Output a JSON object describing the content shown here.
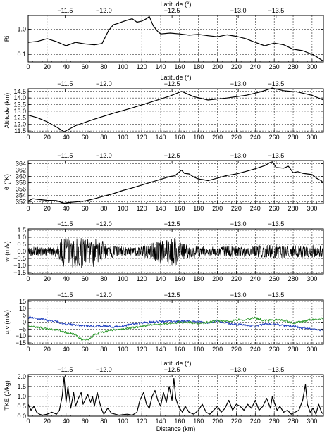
{
  "chart_data": [
    {
      "type": "line",
      "top_axis_label": "Latitude (°)",
      "top_ticks": [
        "−11.5",
        "−12.0",
        "−12.5",
        "−13.0",
        "−13.5"
      ],
      "top_tick_positions": [
        39,
        80,
        152,
        222,
        262
      ],
      "ylabel": "Ri",
      "xlabel": "",
      "log_y": true,
      "xlim": [
        0,
        312
      ],
      "ylim": [
        0.05,
        3.5
      ],
      "xticks": [
        0,
        20,
        40,
        60,
        80,
        100,
        120,
        140,
        160,
        180,
        200,
        220,
        240,
        260,
        280,
        300
      ],
      "yticks": [
        0.1,
        1.0
      ],
      "ytick_labels": [
        "0.1",
        "1.0"
      ],
      "grid": true,
      "series": [
        {
          "color": "#000000",
          "x": [
            0,
            10,
            20,
            30,
            40,
            50,
            60,
            70,
            78,
            85,
            90,
            95,
            100,
            105,
            110,
            115,
            120,
            125,
            128,
            132,
            137,
            140,
            150,
            160,
            170,
            180,
            190,
            200,
            210,
            220,
            230,
            240,
            250,
            260,
            270,
            280,
            290,
            300,
            305,
            310,
            312
          ],
          "y": [
            0.3,
            0.33,
            0.42,
            0.32,
            0.22,
            0.3,
            0.26,
            0.24,
            0.27,
            0.9,
            1.5,
            1.7,
            2.0,
            2.3,
            2.6,
            1.9,
            2.1,
            2.6,
            3.2,
            1.4,
            0.8,
            0.65,
            0.7,
            0.65,
            0.58,
            0.62,
            0.55,
            0.5,
            0.6,
            0.52,
            0.42,
            0.3,
            0.22,
            0.28,
            0.24,
            0.16,
            0.14,
            0.1,
            0.08,
            0.06,
            0.055
          ]
        }
      ]
    },
    {
      "type": "line",
      "top_axis_label": "Latitude (°)",
      "top_ticks": [
        "−11.5",
        "−12.0",
        "−12.5",
        "−13.0",
        "−13.5"
      ],
      "top_tick_positions": [
        39,
        80,
        152,
        222,
        262
      ],
      "ylabel": "Altitude (km)",
      "xlabel": "",
      "xlim": [
        0,
        312
      ],
      "ylim": [
        11.4,
        14.7
      ],
      "xticks": [
        0,
        20,
        40,
        60,
        80,
        100,
        120,
        140,
        160,
        180,
        200,
        220,
        240,
        260,
        280,
        300
      ],
      "yticks": [
        11.5,
        12.0,
        12.5,
        13.0,
        13.5,
        14.0,
        14.5
      ],
      "ytick_labels": [
        "11.5",
        "12.0",
        "12.5",
        "13.0",
        "13.5",
        "14.0",
        "14.5"
      ],
      "grid": true,
      "series": [
        {
          "color": "#000000",
          "x": [
            0,
            10,
            20,
            30,
            38,
            50,
            70,
            90,
            110,
            130,
            150,
            162,
            175,
            190,
            210,
            230,
            245,
            258,
            270,
            285,
            300,
            312
          ],
          "y": [
            12.7,
            12.5,
            12.2,
            11.8,
            11.45,
            11.9,
            12.4,
            12.85,
            13.25,
            13.7,
            14.15,
            14.5,
            14.1,
            13.85,
            14.0,
            14.2,
            14.45,
            14.75,
            14.55,
            14.45,
            14.2,
            13.85
          ]
        }
      ]
    },
    {
      "type": "line",
      "top_axis_label": "",
      "top_ticks": [
        "−11.5",
        "−12.0",
        "−12.5",
        "−13.0",
        "−13.5"
      ],
      "top_tick_positions": [
        39,
        80,
        152,
        222,
        262
      ],
      "ylabel": "θ (°K)",
      "xlabel": "",
      "xlim": [
        0,
        312
      ],
      "ylim": [
        351.5,
        365
      ],
      "xticks": [
        0,
        20,
        40,
        60,
        80,
        100,
        120,
        140,
        160,
        180,
        200,
        220,
        240,
        260,
        280,
        300
      ],
      "yticks": [
        352,
        354,
        356,
        358,
        360,
        362,
        364
      ],
      "ytick_labels": [
        "352",
        "354",
        "356",
        "358",
        "360",
        "362",
        "364"
      ],
      "grid": true,
      "series": [
        {
          "color": "#000000",
          "x": [
            0,
            5,
            10,
            20,
            30,
            38,
            42,
            50,
            60,
            70,
            80,
            90,
            100,
            110,
            120,
            130,
            140,
            150,
            155,
            160,
            162,
            165,
            170,
            175,
            180,
            185,
            190,
            200,
            210,
            220,
            230,
            240,
            250,
            255,
            258,
            262,
            270,
            275,
            280,
            285,
            290,
            300,
            305,
            310,
            312
          ],
          "y": [
            352.3,
            353.0,
            352.8,
            352.5,
            352.4,
            351.6,
            351.8,
            352.0,
            352.3,
            353.0,
            353.8,
            354.6,
            355.6,
            356.4,
            357.3,
            358.2,
            359.1,
            360.0,
            360.2,
            361.5,
            362.0,
            361.0,
            360.8,
            359.8,
            359.2,
            359.0,
            358.7,
            359.5,
            360.3,
            360.8,
            361.6,
            362.4,
            363.4,
            364.3,
            364.6,
            362.8,
            362.6,
            363.2,
            361.2,
            361.5,
            361.0,
            360.6,
            359.4,
            358.6,
            357.8
          ]
        }
      ]
    },
    {
      "type": "line",
      "top_axis_label": "",
      "top_ticks": [
        "−11.5",
        "−12.0",
        "−12.5",
        "−13.0",
        "−13.5"
      ],
      "top_tick_positions": [
        39,
        80,
        152,
        222,
        262
      ],
      "ylabel": "w (m/s)",
      "xlabel": "",
      "xlim": [
        0,
        312
      ],
      "ylim": [
        -1.6,
        1.6
      ],
      "xticks": [
        0,
        20,
        40,
        60,
        80,
        100,
        120,
        140,
        160,
        180,
        200,
        220,
        240,
        260,
        280,
        300
      ],
      "yticks": [
        -1.5,
        -1.0,
        -0.5,
        0.0,
        0.5,
        1.0,
        1.5
      ],
      "ytick_labels": [
        "−1.5",
        "−1.0",
        "−0.5",
        "0.0",
        "0.5",
        "1.0",
        "1.5"
      ],
      "grid": true,
      "series": [
        {
          "color": "#000000",
          "x": [
            0,
            10,
            20,
            30,
            35,
            40,
            45,
            50,
            55,
            60,
            65,
            70,
            75,
            80,
            85,
            90,
            100,
            110,
            120,
            130,
            140,
            150,
            155,
            160,
            170,
            180,
            190,
            200,
            210,
            220,
            230,
            240,
            250,
            260,
            270,
            280,
            290,
            300,
            310,
            312
          ],
          "y_envelope_upper": [
            0.3,
            0.35,
            0.3,
            0.4,
            0.9,
            1.3,
            1.2,
            1.0,
            1.1,
            0.9,
            1.1,
            0.9,
            0.9,
            0.7,
            0.5,
            0.4,
            0.35,
            0.3,
            0.35,
            0.6,
            0.8,
            0.9,
            1.0,
            0.7,
            0.5,
            0.4,
            0.35,
            0.35,
            0.4,
            0.4,
            0.35,
            0.4,
            0.45,
            0.5,
            0.4,
            0.4,
            0.45,
            0.45,
            0.4,
            0.4
          ],
          "y_envelope_lower": [
            -0.3,
            -0.3,
            -0.35,
            -0.4,
            -0.9,
            -1.3,
            -1.2,
            -1.3,
            -1.2,
            -1.2,
            -1.1,
            -1.3,
            -0.9,
            -0.7,
            -0.6,
            -0.4,
            -0.35,
            -0.3,
            -0.35,
            -0.6,
            -0.8,
            -1.0,
            -1.1,
            -0.8,
            -0.5,
            -0.4,
            -0.35,
            -0.35,
            -0.4,
            -0.45,
            -0.35,
            -0.4,
            -0.45,
            -0.5,
            -0.45,
            -0.4,
            -0.45,
            -0.45,
            -0.4,
            -0.4
          ]
        }
      ]
    },
    {
      "type": "line",
      "top_axis_label": "",
      "top_ticks": [
        "−11.5",
        "−12.0",
        "−12.5",
        "−13.0",
        "−13.5"
      ],
      "top_tick_positions": [
        39,
        80,
        152,
        222,
        262
      ],
      "ylabel": "u,v (m/s)",
      "xlabel": "",
      "xlim": [
        0,
        312
      ],
      "ylim": [
        -16,
        16
      ],
      "xticks": [
        0,
        20,
        40,
        60,
        80,
        100,
        120,
        140,
        160,
        180,
        200,
        220,
        240,
        260,
        280,
        300
      ],
      "yticks": [
        -15,
        -10,
        -5,
        0,
        5,
        10,
        15
      ],
      "ytick_labels": [
        "−15",
        "−10",
        "−5",
        "0",
        "5",
        "10",
        "15"
      ],
      "grid": true,
      "series": [
        {
          "color": "#1f3fbf",
          "x": [
            0,
            10,
            20,
            30,
            40,
            50,
            60,
            70,
            80,
            90,
            100,
            110,
            120,
            130,
            140,
            150,
            160,
            170,
            180,
            190,
            200,
            210,
            220,
            230,
            240,
            250,
            260,
            270,
            280,
            290,
            300,
            312
          ],
          "y": [
            3.5,
            2.5,
            1.5,
            0.5,
            -1.5,
            -2.0,
            -2.5,
            -3.0,
            -2.5,
            -3.5,
            -3.0,
            -1.5,
            -0.5,
            0.0,
            0.5,
            0.5,
            0.5,
            0.5,
            0.0,
            -0.5,
            0.5,
            -0.5,
            -1.5,
            -2.0,
            -3.0,
            -1.5,
            -1.5,
            -2.5,
            -3.0,
            -4.0,
            -5.0,
            -6.0
          ]
        },
        {
          "color": "#2e9a2e",
          "x": [
            0,
            10,
            20,
            30,
            40,
            50,
            55,
            60,
            65,
            70,
            80,
            90,
            100,
            110,
            120,
            130,
            140,
            150,
            160,
            170,
            180,
            190,
            200,
            210,
            220,
            230,
            240,
            250,
            260,
            270,
            280,
            290,
            300,
            312
          ],
          "y": [
            -3.0,
            -3.5,
            -5.0,
            -5.5,
            -7.5,
            -9.0,
            -12.0,
            -13.0,
            -12.0,
            -9.0,
            -7.0,
            -5.5,
            -5.0,
            -4.0,
            -3.0,
            -2.0,
            -1.5,
            -1.0,
            0.0,
            0.0,
            -1.0,
            0.0,
            1.0,
            0.5,
            1.5,
            2.0,
            3.0,
            1.0,
            1.5,
            1.5,
            -0.5,
            0.5,
            2.0,
            2.5
          ]
        }
      ]
    },
    {
      "type": "line",
      "top_axis_label": "Latitude (°)",
      "top_ticks": [
        "−11.5",
        "−12.0",
        "−12.5",
        "−13.0",
        "−13.5"
      ],
      "top_tick_positions": [
        39,
        80,
        152,
        222,
        262
      ],
      "ylabel": "TKE (J/kg)",
      "xlabel": "Distance (km)",
      "xlim": [
        0,
        312
      ],
      "ylim": [
        0,
        2.1
      ],
      "xticks": [
        0,
        20,
        40,
        60,
        80,
        100,
        120,
        140,
        160,
        180,
        200,
        220,
        240,
        260,
        280,
        300
      ],
      "yticks": [
        0.0,
        0.5,
        1.0,
        1.5,
        2.0
      ],
      "ytick_labels": [
        "0.0",
        "0.5",
        "1.0",
        "1.5",
        "2.0"
      ],
      "grid": true,
      "series": [
        {
          "color": "#000000",
          "x": [
            0,
            3,
            6,
            9,
            12,
            15,
            20,
            25,
            30,
            33,
            36,
            38,
            40,
            42,
            45,
            48,
            50,
            53,
            56,
            58,
            60,
            63,
            66,
            68,
            70,
            73,
            76,
            78,
            80,
            84,
            88,
            92,
            96,
            100,
            105,
            110,
            115,
            118,
            122,
            125,
            128,
            131,
            134,
            137,
            140,
            143,
            146,
            149,
            152,
            154,
            156,
            158,
            160,
            163,
            166,
            170,
            175,
            180,
            184,
            188,
            192,
            196,
            200,
            204,
            208,
            212,
            216,
            220,
            224,
            228,
            232,
            236,
            240,
            244,
            248,
            252,
            256,
            258,
            260,
            263,
            266,
            270,
            274,
            278,
            282,
            286,
            290,
            293,
            295,
            298,
            301,
            304,
            307,
            310,
            312
          ],
          "y": [
            0.6,
            0.3,
            0.5,
            0.2,
            0.1,
            0.05,
            0.1,
            0.2,
            0.1,
            0.3,
            1.0,
            2.0,
            0.7,
            1.5,
            0.4,
            1.2,
            0.5,
            0.9,
            1.2,
            0.6,
            0.8,
            1.1,
            0.7,
            1.0,
            0.5,
            1.2,
            0.6,
            0.3,
            0.1,
            0.4,
            0.15,
            0.1,
            0.05,
            0.08,
            0.1,
            0.05,
            0.2,
            0.8,
            1.2,
            0.6,
            0.4,
            1.0,
            1.3,
            0.8,
            0.5,
            1.2,
            0.7,
            1.5,
            0.8,
            1.9,
            0.9,
            0.6,
            0.4,
            0.2,
            0.5,
            0.2,
            0.1,
            0.3,
            0.6,
            0.2,
            0.1,
            0.3,
            0.5,
            0.2,
            0.4,
            0.8,
            0.3,
            0.6,
            0.5,
            0.3,
            0.6,
            0.4,
            0.8,
            0.3,
            0.5,
            0.9,
            0.4,
            1.0,
            0.7,
            0.3,
            0.5,
            0.2,
            0.3,
            0.1,
            0.2,
            0.3,
            0.8,
            1.6,
            0.6,
            0.2,
            0.4,
            0.1,
            0.6,
            0.2,
            0.1
          ]
        }
      ]
    }
  ]
}
